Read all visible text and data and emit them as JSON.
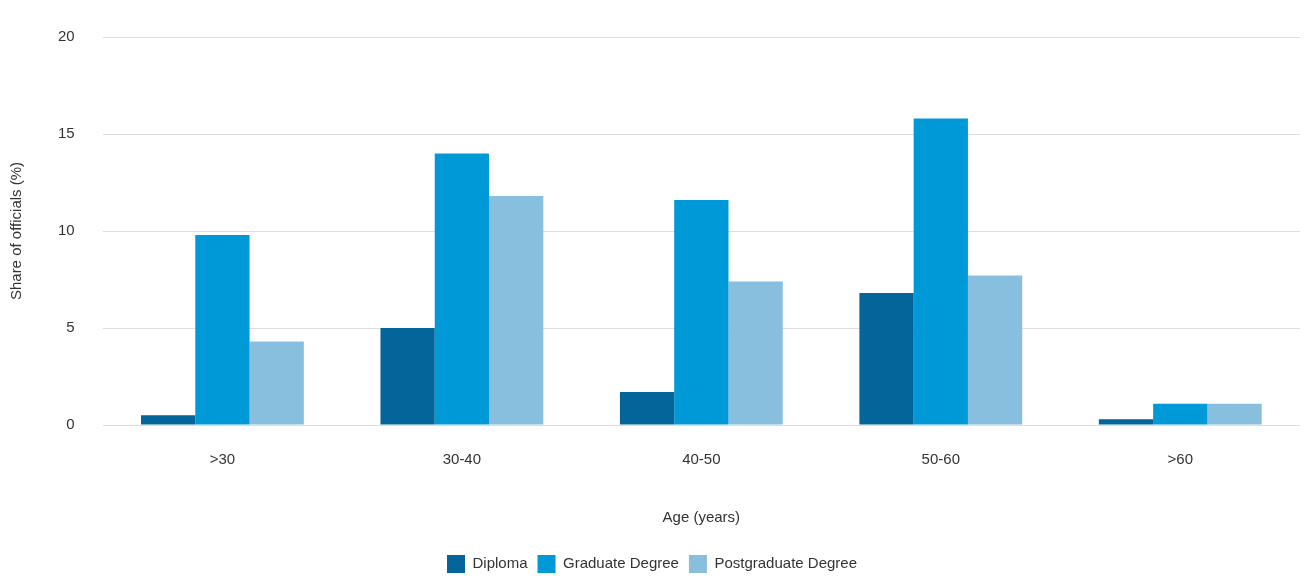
{
  "chart_data": {
    "type": "bar",
    "xlabel": "Age (years)",
    "ylabel": "Share of officials (%)",
    "categories": [
      ">30",
      "30-40",
      "40-50",
      "50-60",
      ">60"
    ],
    "series": [
      {
        "name": "Diploma",
        "color": "#04659a",
        "values": [
          0.5,
          5.0,
          1.7,
          6.8,
          0.3
        ]
      },
      {
        "name": "Graduate Degree",
        "color": "#0099d8",
        "values": [
          9.8,
          14.0,
          11.6,
          15.8,
          1.1
        ]
      },
      {
        "name": "Postgraduate Degree",
        "color": "#88bfde",
        "values": [
          4.3,
          11.8,
          7.4,
          7.7,
          1.1
        ]
      }
    ],
    "ylim": [
      0,
      20
    ],
    "yticks": [
      0,
      5,
      10,
      15,
      20
    ],
    "grid": "y",
    "legend": "bottom"
  }
}
